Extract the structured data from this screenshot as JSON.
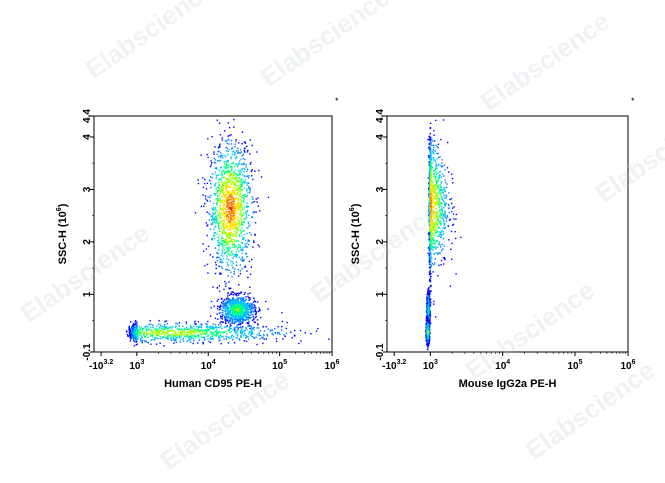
{
  "watermark": "Elabscience",
  "colors": {
    "density": [
      "#0000ff",
      "#0080ff",
      "#00c0ff",
      "#00ff80",
      "#a0ff00",
      "#ffe000",
      "#ff8000",
      "#ff0000"
    ],
    "axis": "#000000",
    "background": "#ffffff"
  },
  "chart_data": [
    {
      "type": "scatter",
      "subtype": "flow-cytometry-density-dot-plot",
      "title": "",
      "xlabel": "Human CD95 PE-H",
      "ylabel": "SSC-H (10",
      "ylabel_exp": "6",
      "ylabel_close": ")",
      "corner_mark": "*",
      "x_scale": "biexponential",
      "xlim": [
        "-10^3.2",
        "10^6"
      ],
      "x_ticks": [
        {
          "base": "-10",
          "exp": "3.2",
          "pos": -3.2
        },
        {
          "base": "10",
          "exp": "3",
          "pos": 3
        },
        {
          "base": "10",
          "exp": "4",
          "pos": 4
        },
        {
          "base": "10",
          "exp": "5",
          "pos": 5
        },
        {
          "base": "10",
          "exp": "6",
          "pos": 6
        }
      ],
      "ylim": [
        -0.1,
        4.4
      ],
      "y_ticks": [
        {
          "label": "-0.1",
          "value": -0.1
        },
        {
          "label": "1",
          "value": 1
        },
        {
          "label": "2",
          "value": 2
        },
        {
          "label": "3",
          "value": 3
        },
        {
          "label": "4",
          "value": 4
        },
        {
          "label": "4.4",
          "value": 4.4
        }
      ],
      "populations": [
        {
          "x_center": 4.3,
          "y_center": 2.65,
          "x_spread": 0.15,
          "y_spread": 0.62,
          "density": 1.0
        },
        {
          "x_center": 4.4,
          "y_center": 0.72,
          "x_spread": 0.12,
          "y_spread": 0.13,
          "density": 0.6
        },
        {
          "x_center": 3.5,
          "y_center": 0.28,
          "x_spread": 0.8,
          "y_spread": 0.09,
          "density": 0.7
        }
      ]
    },
    {
      "type": "scatter",
      "subtype": "flow-cytometry-density-dot-plot",
      "title": "",
      "xlabel": "Mouse IgG2a PE-H",
      "ylabel": "SSC-H (10",
      "ylabel_exp": "6",
      "ylabel_close": ")",
      "corner_mark": "*",
      "x_scale": "biexponential",
      "xlim": [
        "-10^3.2",
        "10^6"
      ],
      "x_ticks": [
        {
          "base": "-10",
          "exp": "3.2",
          "pos": -3.2
        },
        {
          "base": "10",
          "exp": "3",
          "pos": 3
        },
        {
          "base": "10",
          "exp": "4",
          "pos": 4
        },
        {
          "base": "10",
          "exp": "5",
          "pos": 5
        },
        {
          "base": "10",
          "exp": "6",
          "pos": 6
        }
      ],
      "ylim": [
        -0.1,
        4.4
      ],
      "y_ticks": [
        {
          "label": "-0.1",
          "value": -0.1
        },
        {
          "label": "1",
          "value": 1
        },
        {
          "label": "2",
          "value": 2
        },
        {
          "label": "3",
          "value": 3
        },
        {
          "label": "4",
          "value": 4
        },
        {
          "label": "4.4",
          "value": 4.4
        }
      ],
      "populations": [
        {
          "x_center": 2.95,
          "y_center": 2.7,
          "x_spread": 0.14,
          "y_spread": 0.6,
          "density": 1.0
        },
        {
          "x_center": 2.55,
          "y_center": 0.72,
          "x_spread": 0.12,
          "y_spread": 0.15,
          "density": 0.5
        },
        {
          "x_center": 2.45,
          "y_center": 0.3,
          "x_spread": 0.13,
          "y_spread": 0.1,
          "density": 0.7
        }
      ]
    }
  ]
}
